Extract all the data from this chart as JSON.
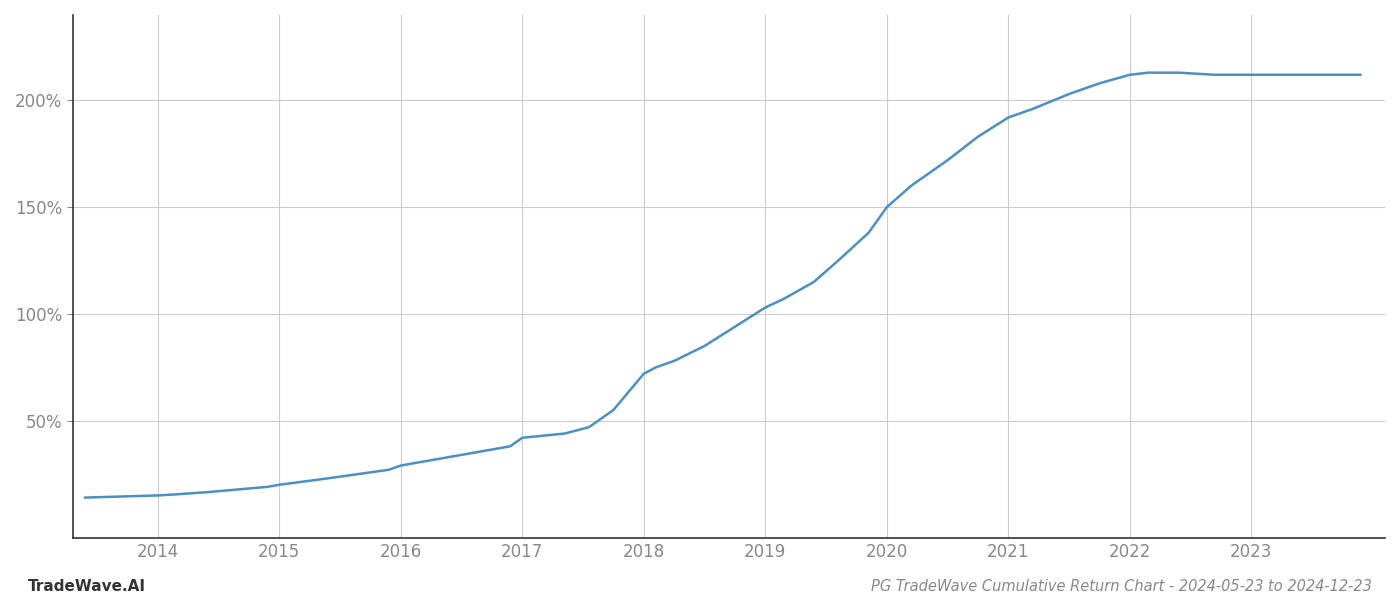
{
  "x_values": [
    2013.4,
    2014.0,
    2014.15,
    2014.4,
    2014.9,
    2015.0,
    2015.4,
    2015.9,
    2016.0,
    2016.4,
    2016.9,
    2017.0,
    2017.35,
    2017.55,
    2017.75,
    2018.0,
    2018.1,
    2018.25,
    2018.5,
    2018.75,
    2019.0,
    2019.15,
    2019.4,
    2019.6,
    2019.85,
    2020.0,
    2020.2,
    2020.5,
    2020.75,
    2021.0,
    2021.2,
    2021.5,
    2021.75,
    2022.0,
    2022.15,
    2022.4,
    2022.7,
    2022.9,
    2023.0,
    2023.3,
    2023.6,
    2023.9
  ],
  "y_values": [
    14,
    15,
    15.5,
    16.5,
    19,
    20,
    23,
    27,
    29,
    33,
    38,
    42,
    44,
    47,
    55,
    72,
    75,
    78,
    85,
    94,
    103,
    107,
    115,
    125,
    138,
    150,
    160,
    172,
    183,
    192,
    196,
    203,
    208,
    212,
    213,
    213,
    212,
    212,
    212,
    212,
    212,
    212
  ],
  "line_color": "#4a90c4",
  "line_width": 1.8,
  "title": "PG TradeWave Cumulative Return Chart - 2024-05-23 to 2024-12-23",
  "watermark": "TradeWave.AI",
  "yticks": [
    50,
    100,
    150,
    200
  ],
  "ytick_labels": [
    "50%",
    "100%",
    "150%",
    "200%"
  ],
  "xticks": [
    2014,
    2015,
    2016,
    2017,
    2018,
    2019,
    2020,
    2021,
    2022,
    2023
  ],
  "xlim": [
    2013.3,
    2024.1
  ],
  "ylim": [
    -5,
    240
  ],
  "background_color": "#ffffff",
  "grid_color": "#cccccc",
  "left_spine_color": "#333333",
  "bottom_spine_color": "#333333",
  "title_fontsize": 10.5,
  "tick_fontsize": 12,
  "watermark_fontsize": 11
}
